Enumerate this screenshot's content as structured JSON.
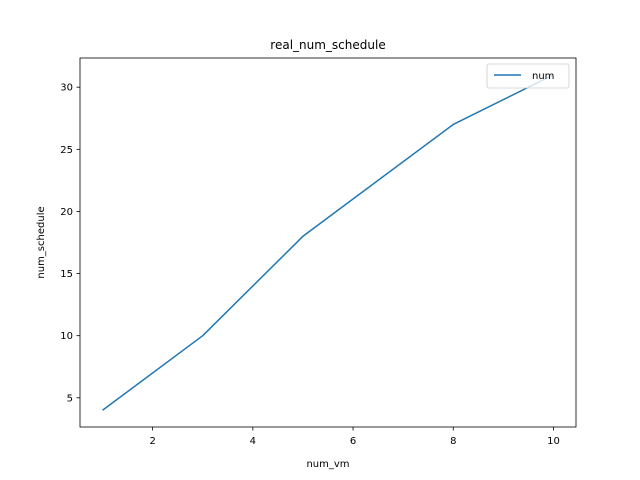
{
  "chart_data": {
    "type": "line",
    "title": "real_num_schedule",
    "xlabel": "num_vm",
    "ylabel": "num_schedule",
    "x": [
      1,
      3,
      5,
      8,
      10
    ],
    "series": [
      {
        "name": "num",
        "values": [
          4,
          10,
          18,
          27,
          31
        ],
        "color": "#1f77b4"
      }
    ],
    "xlim": [
      0.55,
      10.45
    ],
    "ylim": [
      2.65,
      32.35
    ],
    "xticks": [
      2,
      4,
      6,
      8,
      10
    ],
    "yticks": [
      5,
      10,
      15,
      20,
      25,
      30
    ],
    "legend": "upper-right",
    "grid": false
  }
}
